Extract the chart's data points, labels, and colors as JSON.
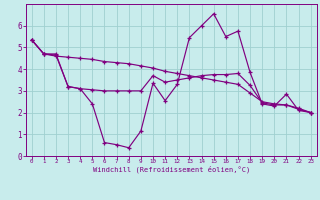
{
  "xlabel": "Windchill (Refroidissement éolien,°C)",
  "bg_color": "#c8ecec",
  "line_color": "#800080",
  "grid_color": "#a0d0d0",
  "xlim": [
    -0.5,
    23.5
  ],
  "ylim": [
    0,
    7
  ],
  "xticks": [
    0,
    1,
    2,
    3,
    4,
    5,
    6,
    7,
    8,
    9,
    10,
    11,
    12,
    13,
    14,
    15,
    16,
    17,
    18,
    19,
    20,
    21,
    22,
    23
  ],
  "yticks": [
    0,
    1,
    2,
    3,
    4,
    5,
    6
  ],
  "line1_x": [
    0,
    1,
    2,
    3,
    4,
    5,
    6,
    7,
    8,
    9,
    10,
    11,
    12,
    13,
    14,
    15,
    16,
    17,
    18,
    19,
    20,
    21,
    22,
    23
  ],
  "line1_y": [
    5.35,
    4.7,
    4.7,
    3.2,
    3.1,
    2.4,
    0.62,
    0.52,
    0.38,
    1.15,
    3.35,
    2.55,
    3.3,
    5.45,
    6.0,
    6.55,
    5.5,
    5.75,
    3.85,
    2.4,
    2.3,
    2.85,
    2.1,
    2.0
  ],
  "line2_x": [
    0,
    1,
    2,
    3,
    4,
    5,
    6,
    7,
    8,
    9,
    10,
    11,
    12,
    13,
    14,
    15,
    16,
    17,
    18,
    19,
    20,
    21,
    22,
    23
  ],
  "line2_y": [
    5.35,
    4.7,
    4.65,
    3.2,
    3.1,
    3.05,
    3.0,
    3.0,
    3.0,
    3.0,
    3.7,
    3.4,
    3.5,
    3.6,
    3.7,
    3.75,
    3.75,
    3.8,
    3.25,
    2.45,
    2.35,
    2.35,
    2.15,
    2.0
  ],
  "line3_x": [
    0,
    1,
    2,
    3,
    4,
    5,
    6,
    7,
    8,
    9,
    10,
    11,
    12,
    13,
    14,
    15,
    16,
    17,
    18,
    19,
    20,
    21,
    22,
    23
  ],
  "line3_y": [
    5.35,
    4.7,
    4.6,
    4.55,
    4.5,
    4.45,
    4.35,
    4.3,
    4.25,
    4.15,
    4.05,
    3.9,
    3.8,
    3.7,
    3.6,
    3.5,
    3.4,
    3.3,
    2.9,
    2.5,
    2.4,
    2.35,
    2.2,
    2.0
  ]
}
